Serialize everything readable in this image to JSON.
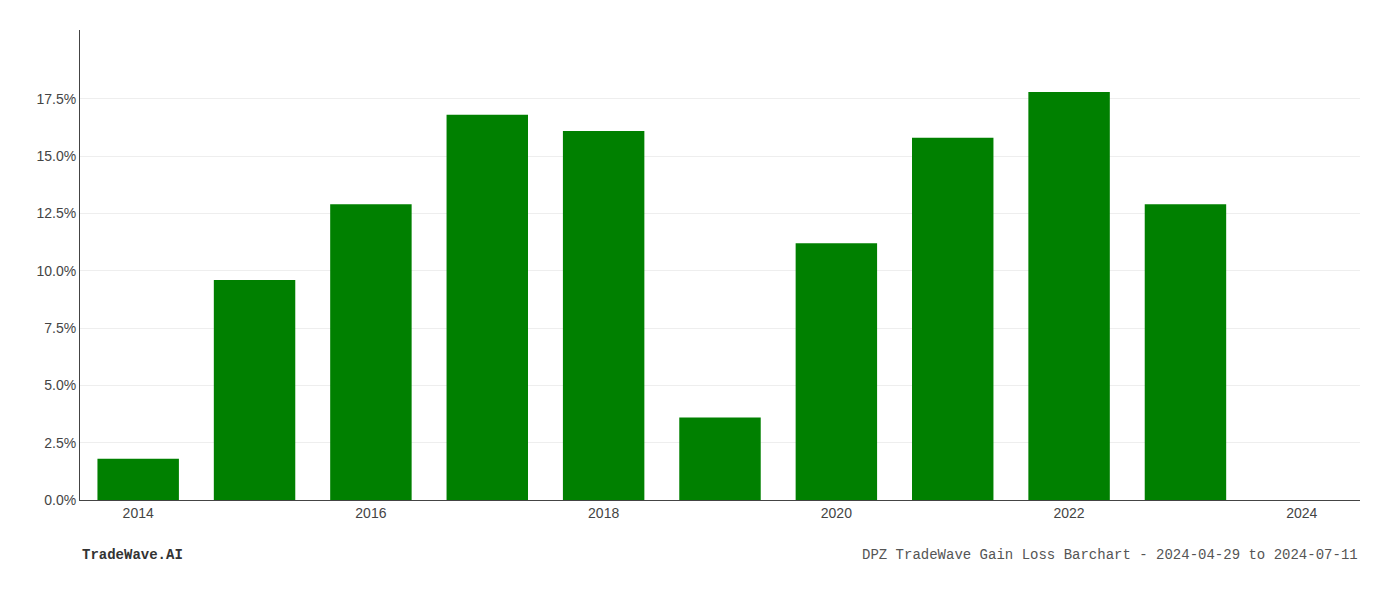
{
  "chart_data": {
    "type": "bar",
    "categories": [
      "2014",
      null,
      "2016",
      null,
      "2018",
      null,
      "2020",
      null,
      "2022",
      null,
      "2024"
    ],
    "values": [
      0.018,
      0.096,
      0.129,
      0.168,
      0.161,
      0.036,
      0.112,
      0.158,
      0.178,
      0.129,
      0.0
    ],
    "color": "#008000",
    "ylim": [
      0,
      0.205
    ],
    "yticks": [
      {
        "value": 0.0,
        "label": "0.0%"
      },
      {
        "value": 0.025,
        "label": "2.5%"
      },
      {
        "value": 0.05,
        "label": "5.0%"
      },
      {
        "value": 0.075,
        "label": "7.5%"
      },
      {
        "value": 0.1,
        "label": "10.0%"
      },
      {
        "value": 0.125,
        "label": "12.5%"
      },
      {
        "value": 0.15,
        "label": "15.0%"
      },
      {
        "value": 0.175,
        "label": "17.5%"
      }
    ],
    "grid": true,
    "annotations": [
      "TradeWave.AI",
      "DPZ TradeWave Gain Loss Barchart - 2024-04-29 to 2024-07-11"
    ]
  }
}
